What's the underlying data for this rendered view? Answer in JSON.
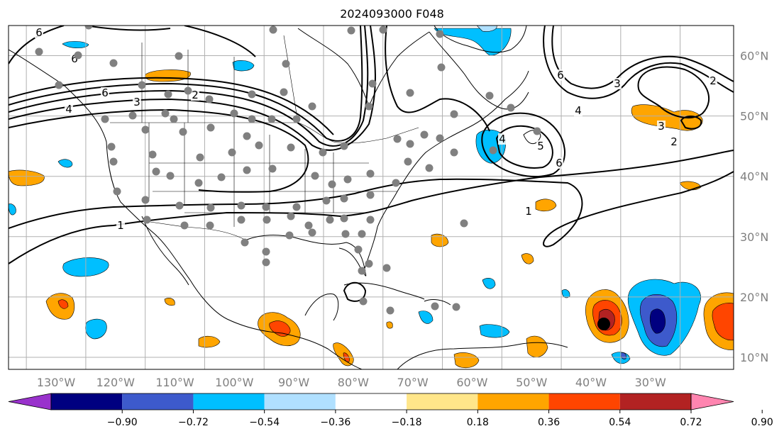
{
  "title": "2024093000 F048",
  "map": {
    "lon_range": [
      -138,
      -16
    ],
    "lat_range": [
      8,
      65
    ],
    "lon_ticks": [
      {
        "lon": -130,
        "label": "130°W"
      },
      {
        "lon": -120,
        "label": "120°W"
      },
      {
        "lon": -110,
        "label": "110°W"
      },
      {
        "lon": -100,
        "label": "100°W"
      },
      {
        "lon": -90,
        "label": "90°W"
      },
      {
        "lon": -80,
        "label": "80°W"
      },
      {
        "lon": -70,
        "label": "70°W"
      },
      {
        "lon": -60,
        "label": "60°W"
      },
      {
        "lon": -50,
        "label": "50°W"
      },
      {
        "lon": -40,
        "label": "40°W"
      },
      {
        "lon": -30,
        "label": "30°W"
      }
    ],
    "lat_ticks": [
      {
        "lat": 10,
        "label": "10°N"
      },
      {
        "lat": 20,
        "label": "20°N"
      },
      {
        "lat": 30,
        "label": "30°N"
      },
      {
        "lat": 40,
        "label": "40°N"
      },
      {
        "lat": 50,
        "label": "50°N"
      },
      {
        "lat": 60,
        "label": "60°N"
      }
    ],
    "contour_labels": [
      "6",
      "6",
      "6",
      "4",
      "3",
      "2",
      "1",
      "4",
      "3",
      "2",
      "6",
      "5",
      "4",
      "3",
      "2",
      "1",
      "6"
    ],
    "marker_color": "#808080",
    "center_marker_color": "#000000"
  },
  "colorbar": {
    "ticks": [
      "−0.90",
      "−0.72",
      "−0.54",
      "−0.36",
      "−0.18",
      "0.18",
      "0.36",
      "0.54",
      "0.72",
      "0.90"
    ],
    "colors": [
      "#9932cc",
      "#000080",
      "#3d5acc",
      "#00bfff",
      "#b0e0ff",
      "#ffffff",
      "#ffe68a",
      "#ffa500",
      "#ff4500",
      "#b22222",
      "#ff85b0"
    ]
  }
}
